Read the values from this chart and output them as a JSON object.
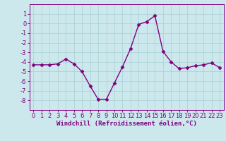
{
  "x": [
    0,
    1,
    2,
    3,
    4,
    5,
    6,
    7,
    8,
    9,
    10,
    11,
    12,
    13,
    14,
    15,
    16,
    17,
    18,
    19,
    20,
    21,
    22,
    23
  ],
  "y": [
    -4.3,
    -4.3,
    -4.3,
    -4.2,
    -3.7,
    -4.2,
    -5.0,
    -6.5,
    -7.9,
    -7.9,
    -6.2,
    -4.5,
    -2.6,
    -0.1,
    0.2,
    0.8,
    -2.9,
    -4.0,
    -4.7,
    -4.6,
    -4.4,
    -4.3,
    -4.1,
    -4.6
  ],
  "line_color": "#800080",
  "marker": "D",
  "markersize": 2.5,
  "linewidth": 1.0,
  "xlabel": "Windchill (Refroidissement éolien,°C)",
  "xlabel_fontsize": 6.5,
  "ylabel": "",
  "title": "",
  "xlim": [
    -0.5,
    23.5
  ],
  "ylim": [
    -9,
    2
  ],
  "yticks": [
    -8,
    -7,
    -6,
    -5,
    -4,
    -3,
    -2,
    -1,
    0,
    1
  ],
  "xticks": [
    0,
    1,
    2,
    3,
    4,
    5,
    6,
    7,
    8,
    9,
    10,
    11,
    12,
    13,
    14,
    15,
    16,
    17,
    18,
    19,
    20,
    21,
    22,
    23
  ],
  "grid_color": "#aed4d8",
  "bg_color": "#cce8ec",
  "tick_fontsize": 6.0,
  "tick_color": "#800080",
  "spine_color": "#800080"
}
